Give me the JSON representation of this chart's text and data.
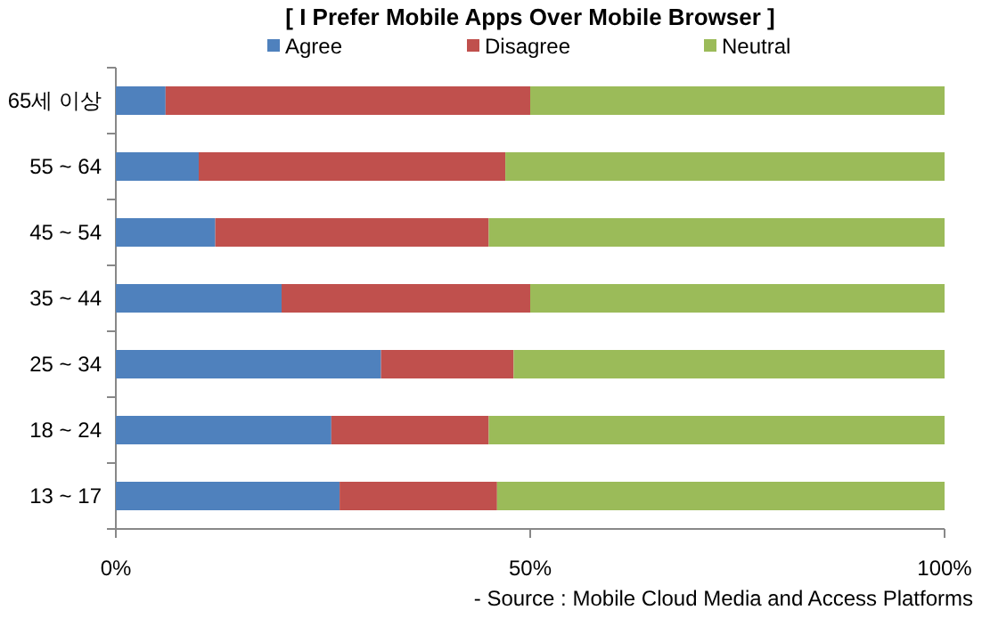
{
  "chart_data": {
    "type": "bar",
    "orientation": "horizontal",
    "stacked": true,
    "title": "[ I Prefer Mobile Apps Over Mobile Browser ]",
    "categories": [
      "65세 이상",
      "55 ~ 64",
      "45 ~ 54",
      "35 ~ 44",
      "25 ~ 34",
      "18 ~ 24",
      "13 ~ 17"
    ],
    "series": [
      {
        "name": "Agree",
        "color": "#4f81bd",
        "values": [
          6,
          10,
          12,
          20,
          32,
          26,
          27
        ]
      },
      {
        "name": "Disagree",
        "color": "#c0504d",
        "values": [
          44,
          37,
          33,
          30,
          16,
          19,
          19
        ]
      },
      {
        "name": "Neutral",
        "color": "#9bbb59",
        "values": [
          50,
          53,
          55,
          50,
          52,
          55,
          54
        ]
      }
    ],
    "xlim": [
      0,
      100
    ],
    "xticks": [
      {
        "value": 0,
        "label": "0%"
      },
      {
        "value": 50,
        "label": "50%"
      },
      {
        "value": 100,
        "label": "100%"
      }
    ],
    "legend": "top",
    "annotations": [
      "- Source : Mobile Cloud Media and Access Platforms"
    ]
  }
}
